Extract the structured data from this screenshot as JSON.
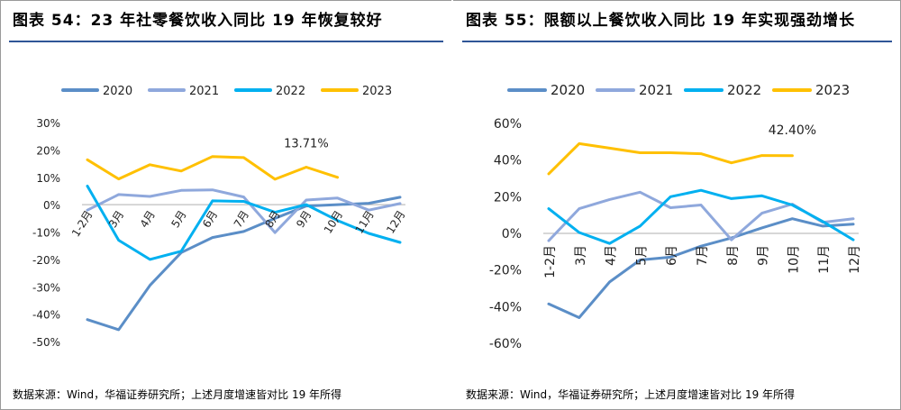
{
  "panels": [
    {
      "title": "图表 54：23 年社零餐饮收入同比 19 年恢复较好",
      "source": "数据来源：Wind，华福证券研究所；上述月度增速皆对比 19 年所得",
      "chart_data": {
        "type": "line",
        "categories": [
          "1-2月",
          "3月",
          "4月",
          "5月",
          "6月",
          "7月",
          "8月",
          "9月",
          "10月",
          "11月",
          "12月"
        ],
        "series": [
          {
            "name": "2020",
            "color": "#5b8ec7",
            "values": [
              -42,
              -45.7,
              -29.5,
              -17.5,
              -12,
              -9.8,
              -5,
              -0.5,
              0,
              0.5,
              2.7
            ]
          },
          {
            "name": "2021",
            "color": "#8fa8dc",
            "values": [
              -2,
              3.7,
              3,
              5.2,
              5.4,
              2.8,
              -10.2,
              1.7,
              2.4,
              -2,
              0.4
            ]
          },
          {
            "name": "2022",
            "color": "#00b0f0",
            "values": [
              6.8,
              -13,
              -20,
              -17,
              1.4,
              1.2,
              -2.8,
              0,
              -5.8,
              -10.5,
              -13.8
            ]
          },
          {
            "name": "2023",
            "color": "#ffc000",
            "values": [
              16.4,
              9.4,
              14.6,
              12.3,
              17.6,
              17.2,
              9.3,
              13.7,
              10,
              null,
              null
            ]
          }
        ],
        "yticks": [
          30,
          20,
          10,
          0,
          -10,
          -20,
          -30,
          -40,
          -50
        ],
        "ytick_labels": [
          "30%",
          "20%",
          "10%",
          "0%",
          "-10%",
          "-20%",
          "-30%",
          "-40%",
          "-50%"
        ],
        "ylim": [
          -50,
          30
        ],
        "legend": "top",
        "annotation": {
          "text": "13.71%",
          "series": "2023",
          "index": 7
        }
      }
    },
    {
      "title": "图表 55：限额以上餐饮收入同比 19 年实现强劲增长",
      "source": "数据来源：Wind，华福证券研究所；上述月度增速皆对比 19 年所得",
      "chart_data": {
        "type": "line",
        "categories": [
          "1-2月",
          "3月",
          "4月",
          "5月",
          "6月",
          "7月",
          "8月",
          "9月",
          "10月",
          "11月",
          "12月"
        ],
        "series": [
          {
            "name": "2020",
            "color": "#5b8ec7",
            "values": [
              -38.5,
              -46,
              -26.5,
              -14.5,
              -13,
              -7,
              -2.5,
              3,
              8,
              4,
              5
            ]
          },
          {
            "name": "2021",
            "color": "#8fa8dc",
            "values": [
              -4,
              13.5,
              18.5,
              22.5,
              14,
              15.5,
              -3.5,
              11,
              16,
              6,
              8
            ]
          },
          {
            "name": "2022",
            "color": "#00b0f0",
            "values": [
              13.5,
              0.5,
              -5.5,
              4,
              20,
              23.5,
              19,
              20.5,
              15.5,
              6.5,
              -3.5
            ]
          },
          {
            "name": "2023",
            "color": "#ffc000",
            "values": [
              32.5,
              49,
              46.5,
              44,
              44,
              43.5,
              38.5,
              42.5,
              42.4,
              null,
              null
            ]
          }
        ],
        "yticks": [
          60,
          40,
          20,
          0,
          -20,
          -40,
          -60
        ],
        "ytick_labels": [
          "60%",
          "40%",
          "20%",
          "0%",
          "-20%",
          "-40%",
          "-60%"
        ],
        "ylim": [
          -60,
          60
        ],
        "legend": "top",
        "annotation": {
          "text": "42.40%",
          "series": "2023",
          "index": 8
        }
      }
    }
  ]
}
